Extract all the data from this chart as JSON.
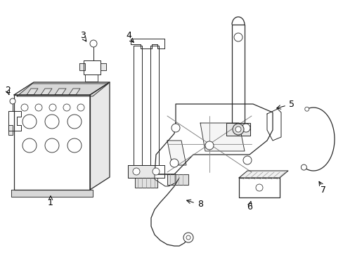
{
  "title": "",
  "background_color": "#ffffff",
  "line_color": "#2a2a2a",
  "label_color": "#000000",
  "figsize": [
    4.89,
    3.6
  ],
  "dpi": 100,
  "lw": 0.9
}
